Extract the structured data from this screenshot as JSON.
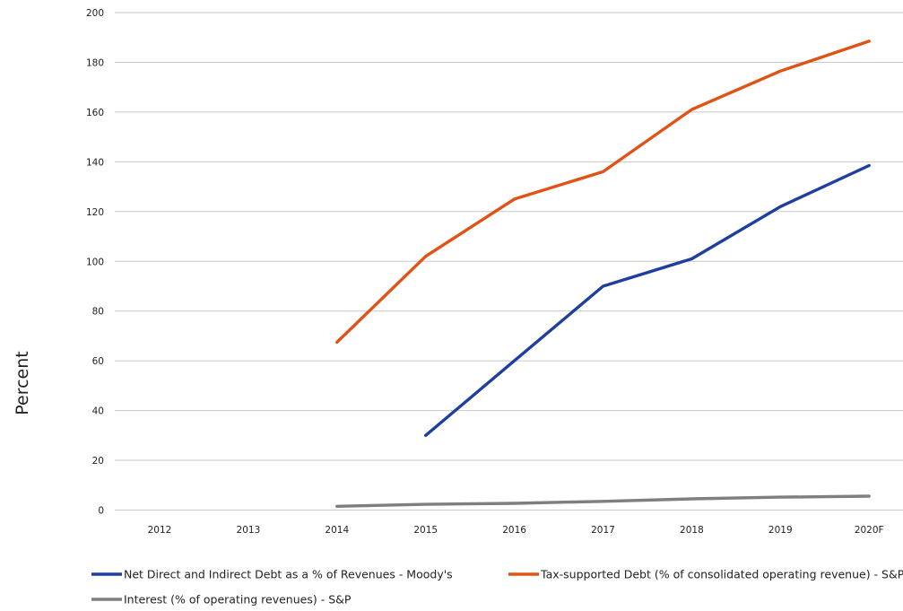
{
  "chart_data": {
    "type": "line",
    "title": "",
    "xlabel": "",
    "ylabel": "Percent",
    "categories": [
      "2012",
      "2013",
      "2014",
      "2015",
      "2016",
      "2017",
      "2018",
      "2019",
      "2020F"
    ],
    "ylim": [
      0,
      200
    ],
    "yticks": [
      0,
      20,
      40,
      60,
      80,
      100,
      120,
      140,
      160,
      180,
      200
    ],
    "grid": true,
    "legend_position": "bottom",
    "series": [
      {
        "name": "Net Direct and Indirect Debt as a % of Revenues - Moody's",
        "color": "#1f3f9f",
        "values": [
          null,
          null,
          null,
          30,
          60,
          90,
          101,
          122,
          138.5
        ]
      },
      {
        "name": "Tax-supported Debt (% of consolidated operating revenue) - S&P",
        "color": "#e05316",
        "values": [
          null,
          null,
          67.5,
          102,
          125,
          136,
          161,
          176.5,
          188.5
        ]
      },
      {
        "name": "Interest (% of operating revenues) - S&P",
        "color": "#7f7f7f",
        "values": [
          null,
          null,
          1.5,
          2.3,
          2.7,
          3.5,
          4.5,
          5.2,
          5.6
        ]
      }
    ]
  }
}
